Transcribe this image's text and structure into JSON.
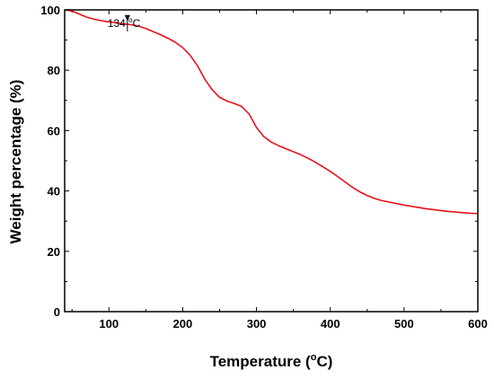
{
  "chart_data": {
    "type": "line",
    "xlabel_main": "Temperature (",
    "xlabel_sup": "o",
    "xlabel_tail": "C)",
    "ylabel": "Weight percentage (%)",
    "xlim": [
      40,
      600
    ],
    "ylim": [
      0,
      100
    ],
    "x_ticks": [
      100,
      200,
      300,
      400,
      500,
      600
    ],
    "y_ticks": [
      0,
      20,
      40,
      60,
      80,
      100
    ],
    "grid": false,
    "legend": "none",
    "series": [
      {
        "color": "#e8101a",
        "points": [
          [
            40,
            100
          ],
          [
            50,
            99.6
          ],
          [
            60,
            98.6
          ],
          [
            70,
            97.6
          ],
          [
            80,
            96.9
          ],
          [
            90,
            96.4
          ],
          [
            100,
            96.0
          ],
          [
            110,
            95.7
          ],
          [
            120,
            95.4
          ],
          [
            130,
            95.1
          ],
          [
            140,
            94.6
          ],
          [
            150,
            93.8
          ],
          [
            160,
            92.8
          ],
          [
            170,
            91.8
          ],
          [
            180,
            90.6
          ],
          [
            190,
            89.3
          ],
          [
            200,
            87.5
          ],
          [
            210,
            85.0
          ],
          [
            220,
            81.5
          ],
          [
            230,
            77.0
          ],
          [
            240,
            73.5
          ],
          [
            250,
            71.0
          ],
          [
            260,
            69.8
          ],
          [
            270,
            69.0
          ],
          [
            280,
            68.0
          ],
          [
            290,
            65.5
          ],
          [
            300,
            61.0
          ],
          [
            310,
            58.0
          ],
          [
            320,
            56.2
          ],
          [
            330,
            55.0
          ],
          [
            340,
            54.0
          ],
          [
            350,
            53.0
          ],
          [
            360,
            52.0
          ],
          [
            370,
            50.8
          ],
          [
            380,
            49.5
          ],
          [
            390,
            48.0
          ],
          [
            400,
            46.5
          ],
          [
            410,
            44.8
          ],
          [
            420,
            43.0
          ],
          [
            430,
            41.2
          ],
          [
            440,
            39.7
          ],
          [
            450,
            38.5
          ],
          [
            460,
            37.5
          ],
          [
            470,
            36.8
          ],
          [
            480,
            36.3
          ],
          [
            490,
            35.8
          ],
          [
            500,
            35.3
          ],
          [
            510,
            34.9
          ],
          [
            520,
            34.5
          ],
          [
            530,
            34.1
          ],
          [
            540,
            33.8
          ],
          [
            550,
            33.5
          ],
          [
            560,
            33.2
          ],
          [
            570,
            33.0
          ],
          [
            580,
            32.8
          ],
          [
            590,
            32.6
          ],
          [
            600,
            32.5
          ]
        ]
      }
    ],
    "annotation": {
      "text_main": "134 ",
      "text_sup": "o",
      "text_tail": "C",
      "x": 125,
      "y": 95.3
    }
  }
}
